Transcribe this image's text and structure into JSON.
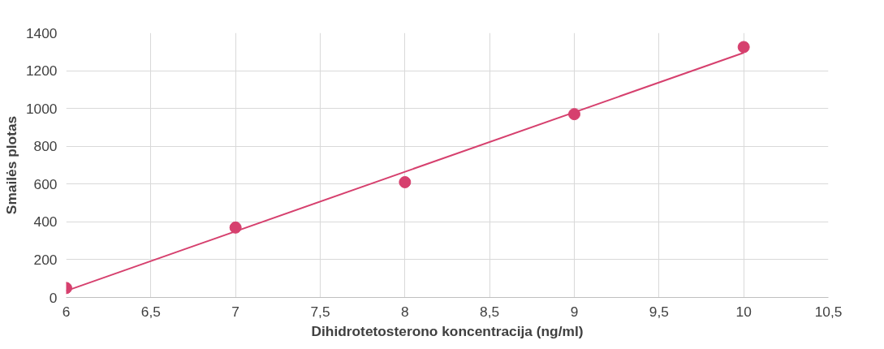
{
  "chart_data": {
    "type": "scatter",
    "xlabel": "Dihidrotetosterono koncentracija (ng/ml)",
    "ylabel": "Smailės plotas",
    "xlim": [
      6,
      10.5
    ],
    "xticks": [
      6,
      {
        "value": 6.5,
        "label": "6,5"
      },
      7,
      {
        "value": 7.5,
        "label": "7,5"
      },
      8,
      {
        "value": 8.5,
        "label": "8,5"
      },
      9,
      {
        "value": 9.5,
        "label": "9,5"
      },
      10,
      {
        "value": 10.5,
        "label": "10,5"
      }
    ],
    "ylim": [
      0,
      1400
    ],
    "yticks": [
      0,
      200,
      400,
      600,
      800,
      1000,
      1200,
      1400
    ],
    "grid": true,
    "marker": "circle",
    "series": [
      {
        "color": "#d6406e",
        "x": [
          6,
          7,
          8,
          9,
          10
        ],
        "values": [
          50,
          370,
          610,
          970,
          1325
        ]
      },
      {
        "type": "line",
        "color": "#d6406e",
        "x": [
          6,
          10
        ],
        "values": [
          35,
          1295
        ],
        "marker": "none",
        "line_style": "solid"
      }
    ]
  }
}
